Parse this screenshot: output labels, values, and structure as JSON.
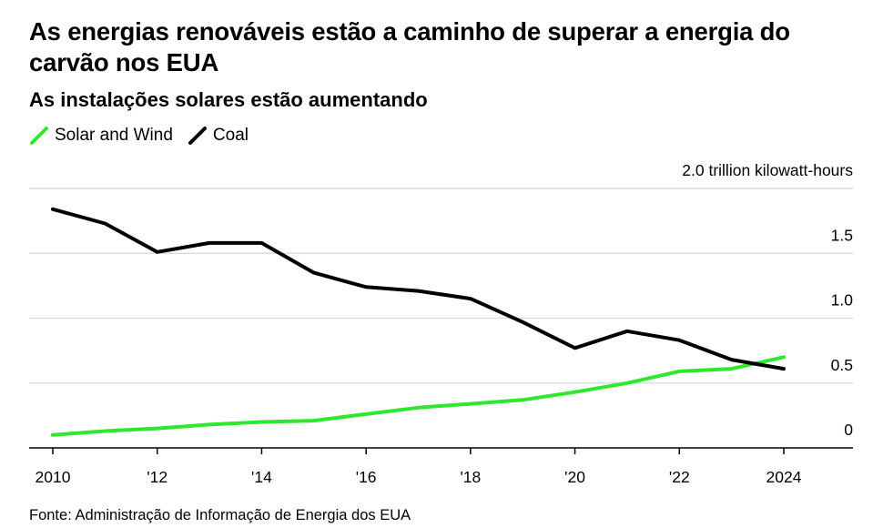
{
  "title": "As energias renováveis estão a caminho de superar a energia do carvão nos EUA",
  "subtitle": "As instalações solares estão aumentando",
  "source": "Fonte: Administração de Informação de Energia dos EUA",
  "legend": [
    {
      "label": "Solar and Wind",
      "color": "#2ee82e"
    },
    {
      "label": "Coal",
      "color": "#000000"
    }
  ],
  "chart_data": {
    "type": "line",
    "title": "As energias renováveis estão a caminho de superar a energia do carvão nos EUA",
    "subtitle": "As instalações solares estão aumentando",
    "x": [
      2010,
      2011,
      2012,
      2013,
      2014,
      2015,
      2016,
      2017,
      2018,
      2019,
      2020,
      2021,
      2022,
      2023,
      2024
    ],
    "x_tick_values": [
      2010,
      2012,
      2014,
      2016,
      2018,
      2020,
      2022,
      2024
    ],
    "x_tick_labels": [
      "2010",
      "'12",
      "'14",
      "'16",
      "'18",
      "'20",
      "'22",
      "2024"
    ],
    "y_tick_values": [
      0,
      0.5,
      1.0,
      1.5,
      2.0
    ],
    "y_tick_labels": [
      "0",
      "0.5",
      "1.0",
      "1.5",
      "2.0 trillion kilowatt-hours"
    ],
    "ylim": [
      0,
      2.0
    ],
    "xlim": [
      2010,
      2025.3
    ],
    "grid": true,
    "legend_position": "top-left",
    "series": [
      {
        "name": "Solar and Wind",
        "color": "#2ee82e",
        "values": [
          0.1,
          0.13,
          0.15,
          0.18,
          0.2,
          0.21,
          0.26,
          0.31,
          0.34,
          0.37,
          0.43,
          0.5,
          0.59,
          0.61,
          0.7
        ]
      },
      {
        "name": "Coal",
        "color": "#000000",
        "values": [
          1.84,
          1.73,
          1.51,
          1.58,
          1.58,
          1.35,
          1.24,
          1.21,
          1.15,
          0.97,
          0.77,
          0.9,
          0.83,
          0.68,
          0.61
        ]
      }
    ]
  }
}
